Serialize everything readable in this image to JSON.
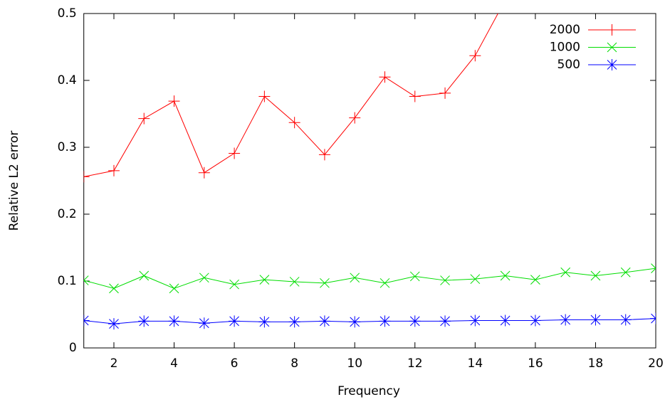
{
  "chart_data": {
    "type": "line",
    "xlabel": "Frequency",
    "ylabel": "Relative L2 error",
    "x": [
      1,
      2,
      3,
      4,
      5,
      6,
      7,
      8,
      9,
      10,
      11,
      12,
      13,
      14,
      15,
      16,
      17,
      18,
      19,
      20
    ],
    "xlim": [
      1,
      20
    ],
    "xticks": [
      2,
      4,
      6,
      8,
      10,
      12,
      14,
      16,
      18,
      20
    ],
    "ylim": [
      0,
      0.5
    ],
    "yticks": [
      0,
      0.1,
      0.2,
      0.3,
      0.4,
      0.5
    ],
    "legend": "upper-right",
    "series": [
      {
        "name": "2000",
        "color": "#ff0000",
        "marker": "plus",
        "values": [
          0.256,
          0.265,
          0.343,
          0.369,
          0.262,
          0.291,
          0.376,
          0.337,
          0.289,
          0.344,
          0.405,
          0.376,
          0.381,
          0.437,
          0.52,
          null,
          null,
          null,
          null,
          null
        ]
      },
      {
        "name": "1000",
        "color": "#00dd00",
        "marker": "cross",
        "values": [
          0.101,
          0.089,
          0.108,
          0.089,
          0.105,
          0.095,
          0.102,
          0.099,
          0.097,
          0.105,
          0.097,
          0.107,
          0.101,
          0.103,
          0.108,
          0.102,
          0.113,
          0.108,
          0.113,
          0.119
        ]
      },
      {
        "name": "500",
        "color": "#0000ff",
        "marker": "star",
        "values": [
          0.041,
          0.036,
          0.04,
          0.04,
          0.037,
          0.04,
          0.039,
          0.039,
          0.04,
          0.039,
          0.04,
          0.04,
          0.04,
          0.041,
          0.041,
          0.041,
          0.042,
          0.042,
          0.042,
          0.044
        ]
      }
    ]
  }
}
